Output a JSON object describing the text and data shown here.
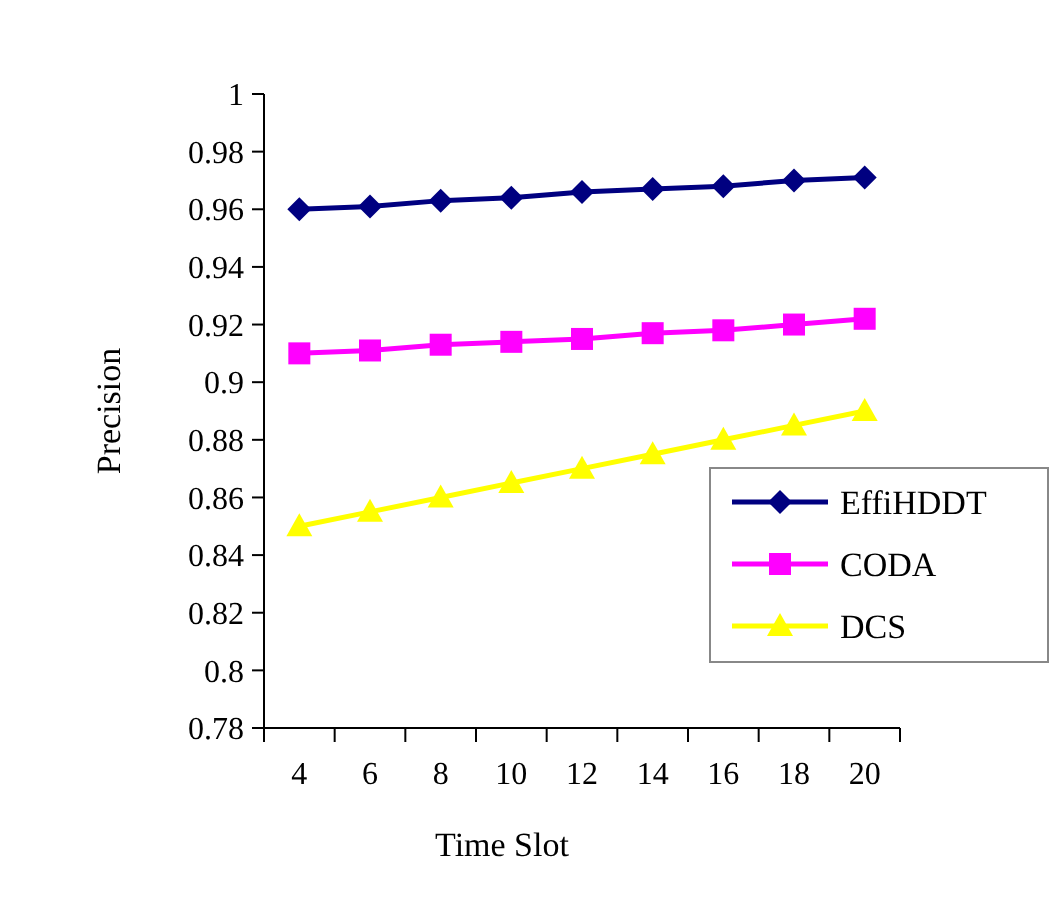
{
  "chart_data": {
    "type": "line",
    "xlabel": "Time Slot",
    "ylabel": "Precision",
    "categories": [
      "4",
      "6",
      "8",
      "10",
      "12",
      "14",
      "16",
      "18",
      "20"
    ],
    "ylim": [
      0.78,
      1
    ],
    "yticks": [
      {
        "value": 0.78,
        "label": "0.78"
      },
      {
        "value": 0.8,
        "label": "0.8"
      },
      {
        "value": 0.82,
        "label": "0.82"
      },
      {
        "value": 0.84,
        "label": "0.84"
      },
      {
        "value": 0.86,
        "label": "0.86"
      },
      {
        "value": 0.88,
        "label": "0.88"
      },
      {
        "value": 0.9,
        "label": "0.9"
      },
      {
        "value": 0.92,
        "label": "0.92"
      },
      {
        "value": 0.94,
        "label": "0.94"
      },
      {
        "value": 0.96,
        "label": "0.96"
      },
      {
        "value": 0.98,
        "label": "0.98"
      },
      {
        "value": 1,
        "label": "1"
      }
    ],
    "grid": false,
    "legend": "right",
    "line_style": "solid",
    "series": [
      {
        "name": "EffiHDDT",
        "color": "#000080",
        "marker": "diamond",
        "values": [
          0.96,
          0.961,
          0.963,
          0.964,
          0.966,
          0.967,
          0.968,
          0.97,
          0.971
        ]
      },
      {
        "name": "CODA",
        "color": "#ff00ff",
        "marker": "square",
        "values": [
          0.91,
          0.911,
          0.913,
          0.914,
          0.915,
          0.917,
          0.918,
          0.92,
          0.922
        ]
      },
      {
        "name": "DCS",
        "color": "#ffff00",
        "marker": "triangle",
        "values": [
          0.85,
          0.855,
          0.86,
          0.865,
          0.87,
          0.875,
          0.88,
          0.885,
          0.89
        ]
      }
    ]
  }
}
